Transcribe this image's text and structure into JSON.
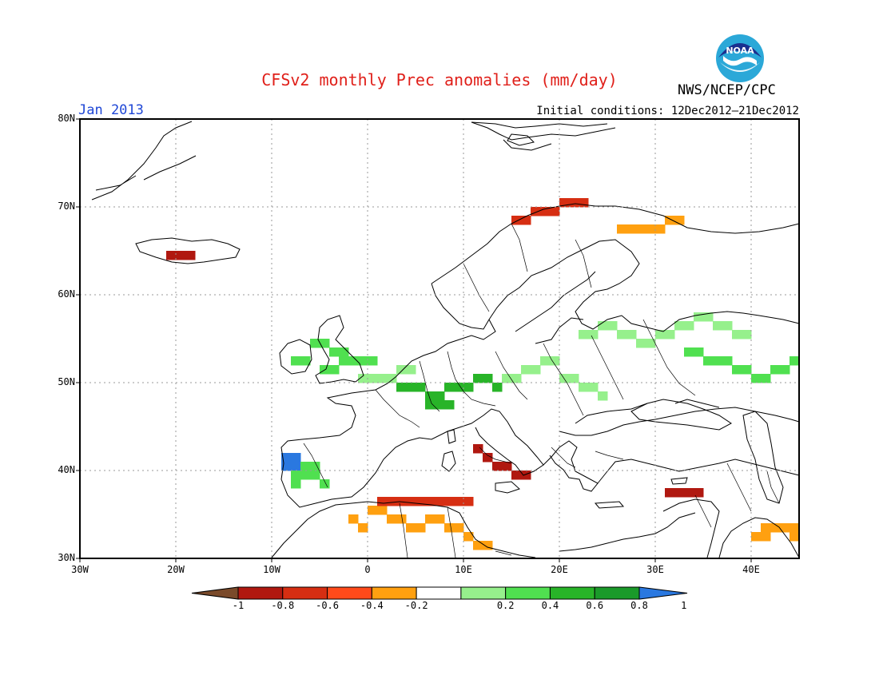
{
  "title": "CFSv2 monthly Prec anomalies (mm/day)",
  "month": "Jan 2013",
  "initial_conditions": "Initial conditions: 12Dec2012–21Dec2012",
  "agency": "NWS/NCEP/CPC",
  "logo_text": "NOAA",
  "colors": {
    "title": "#e0201a",
    "month": "#1f47d6",
    "grid": "#9a9a9a"
  },
  "lat_labels": [
    "80N",
    "70N",
    "60N",
    "50N",
    "40N",
    "30N"
  ],
  "lon_labels": [
    "30W",
    "20W",
    "10W",
    "0",
    "10E",
    "20E",
    "30E",
    "40E"
  ],
  "colorbar": {
    "bins": [
      {
        "color": "#7a4a2a"
      },
      {
        "color": "#b01810"
      },
      {
        "color": "#d62e12"
      },
      {
        "color": "#ff4a1a"
      },
      {
        "color": "#ffa010"
      },
      {
        "color": "#ffffff"
      },
      {
        "color": "#96f08c"
      },
      {
        "color": "#50e050"
      },
      {
        "color": "#28b428"
      },
      {
        "color": "#1a9a2a"
      },
      {
        "color": "#2a78e0"
      }
    ],
    "labels": [
      "-1",
      "-0.8",
      "-0.6",
      "-0.4",
      "-0.2",
      "0.2",
      "0.4",
      "0.6",
      "0.8",
      "1"
    ]
  },
  "map_extent": {
    "lon": [
      -30,
      45
    ],
    "lat": [
      30,
      80
    ]
  },
  "anomaly_patches": [
    {
      "name": "uk-wet",
      "color": "#50e050",
      "cells": [
        [
          -8,
          52
        ],
        [
          -7,
          52
        ],
        [
          -6,
          54
        ],
        [
          -5,
          54
        ],
        [
          -4,
          53
        ],
        [
          -3,
          53
        ],
        [
          -3,
          52
        ],
        [
          -2,
          52
        ],
        [
          -1,
          52
        ],
        [
          0,
          52
        ],
        [
          -5,
          51
        ],
        [
          -4,
          51
        ]
      ]
    },
    {
      "name": "central-europe-wet",
      "color": "#28b428",
      "cells": [
        [
          3,
          49
        ],
        [
          4,
          49
        ],
        [
          5,
          49
        ],
        [
          6,
          48
        ],
        [
          7,
          48
        ],
        [
          8,
          49
        ],
        [
          9,
          49
        ],
        [
          10,
          49
        ],
        [
          11,
          50
        ],
        [
          12,
          50
        ],
        [
          13,
          49
        ],
        [
          6,
          47
        ],
        [
          7,
          47
        ],
        [
          8,
          47
        ]
      ]
    },
    {
      "name": "central-europe-light",
      "color": "#96f08c",
      "cells": [
        [
          -1,
          50
        ],
        [
          0,
          50
        ],
        [
          1,
          50
        ],
        [
          2,
          50
        ],
        [
          3,
          51
        ],
        [
          4,
          51
        ],
        [
          14,
          50
        ],
        [
          15,
          50
        ],
        [
          16,
          51
        ],
        [
          17,
          51
        ],
        [
          18,
          52
        ],
        [
          19,
          52
        ],
        [
          20,
          50
        ],
        [
          21,
          50
        ],
        [
          22,
          49
        ],
        [
          23,
          49
        ],
        [
          24,
          48
        ]
      ]
    },
    {
      "name": "russia-wet",
      "color": "#50e050",
      "cells": [
        [
          33,
          53
        ],
        [
          34,
          53
        ],
        [
          35,
          52
        ],
        [
          36,
          52
        ],
        [
          37,
          52
        ],
        [
          38,
          51
        ],
        [
          39,
          51
        ],
        [
          40,
          50
        ],
        [
          41,
          50
        ],
        [
          42,
          51
        ],
        [
          43,
          51
        ],
        [
          44,
          52
        ]
      ]
    },
    {
      "name": "russia-light",
      "color": "#96f08c",
      "cells": [
        [
          22,
          55
        ],
        [
          23,
          55
        ],
        [
          24,
          56
        ],
        [
          25,
          56
        ],
        [
          26,
          55
        ],
        [
          27,
          55
        ],
        [
          28,
          54
        ],
        [
          29,
          54
        ],
        [
          30,
          55
        ],
        [
          31,
          55
        ],
        [
          32,
          56
        ],
        [
          33,
          56
        ],
        [
          34,
          57
        ],
        [
          35,
          57
        ],
        [
          36,
          56
        ],
        [
          37,
          56
        ],
        [
          38,
          55
        ],
        [
          39,
          55
        ]
      ]
    },
    {
      "name": "portugal-blue",
      "color": "#2a78e0",
      "cells": [
        [
          -9,
          41
        ],
        [
          -8,
          41
        ],
        [
          -9,
          40
        ],
        [
          -8,
          40
        ]
      ]
    },
    {
      "name": "iberia-wet",
      "color": "#50e050",
      "cells": [
        [
          -7,
          40
        ],
        [
          -6,
          40
        ],
        [
          -7,
          39
        ],
        [
          -6,
          39
        ],
        [
          -5,
          38
        ],
        [
          -8,
          39
        ],
        [
          -8,
          38
        ]
      ]
    },
    {
      "name": "italy-dry",
      "color": "#b01810",
      "cells": [
        [
          13,
          40
        ],
        [
          14,
          40
        ],
        [
          15,
          39
        ],
        [
          16,
          39
        ],
        [
          12,
          41
        ],
        [
          11,
          42
        ]
      ]
    },
    {
      "name": "n-africa-dry",
      "color": "#ffa010",
      "cells": [
        [
          0,
          35
        ],
        [
          1,
          35
        ],
        [
          2,
          34
        ],
        [
          3,
          34
        ],
        [
          4,
          33
        ],
        [
          5,
          33
        ],
        [
          6,
          34
        ],
        [
          7,
          34
        ],
        [
          8,
          33
        ],
        [
          9,
          33
        ],
        [
          10,
          32
        ],
        [
          -2,
          34
        ],
        [
          -1,
          33
        ],
        [
          11,
          31
        ],
        [
          12,
          31
        ]
      ]
    },
    {
      "name": "tunisia-red",
      "color": "#d62e12",
      "cells": [
        [
          1,
          36
        ],
        [
          2,
          36
        ],
        [
          3,
          36
        ],
        [
          4,
          36
        ],
        [
          5,
          36
        ],
        [
          6,
          36
        ],
        [
          7,
          36
        ],
        [
          8,
          36
        ],
        [
          9,
          36
        ],
        [
          10,
          36
        ]
      ]
    },
    {
      "name": "norway-dry",
      "color": "#d62e12",
      "cells": [
        [
          15,
          68
        ],
        [
          16,
          68
        ],
        [
          17,
          69
        ],
        [
          18,
          69
        ],
        [
          19,
          69
        ],
        [
          20,
          70
        ],
        [
          21,
          70
        ],
        [
          22,
          70
        ]
      ]
    },
    {
      "name": "finland-dry",
      "color": "#ffa010",
      "cells": [
        [
          27,
          67
        ],
        [
          28,
          67
        ],
        [
          29,
          67
        ],
        [
          30,
          67
        ],
        [
          31,
          68
        ],
        [
          32,
          68
        ],
        [
          26,
          67
        ]
      ]
    },
    {
      "name": "iceland-dry",
      "color": "#b01810",
      "cells": [
        [
          -21,
          64
        ],
        [
          -20,
          64
        ],
        [
          -19,
          64
        ]
      ]
    },
    {
      "name": "turkey-dry",
      "color": "#b01810",
      "cells": [
        [
          31,
          37
        ],
        [
          32,
          37
        ],
        [
          33,
          37
        ],
        [
          34,
          37
        ]
      ]
    },
    {
      "name": "middle-east-dry",
      "color": "#ffa010",
      "cells": [
        [
          41,
          33
        ],
        [
          42,
          33
        ],
        [
          43,
          33
        ],
        [
          44,
          33
        ],
        [
          40,
          32
        ],
        [
          41,
          32
        ],
        [
          44,
          32
        ]
      ]
    }
  ]
}
